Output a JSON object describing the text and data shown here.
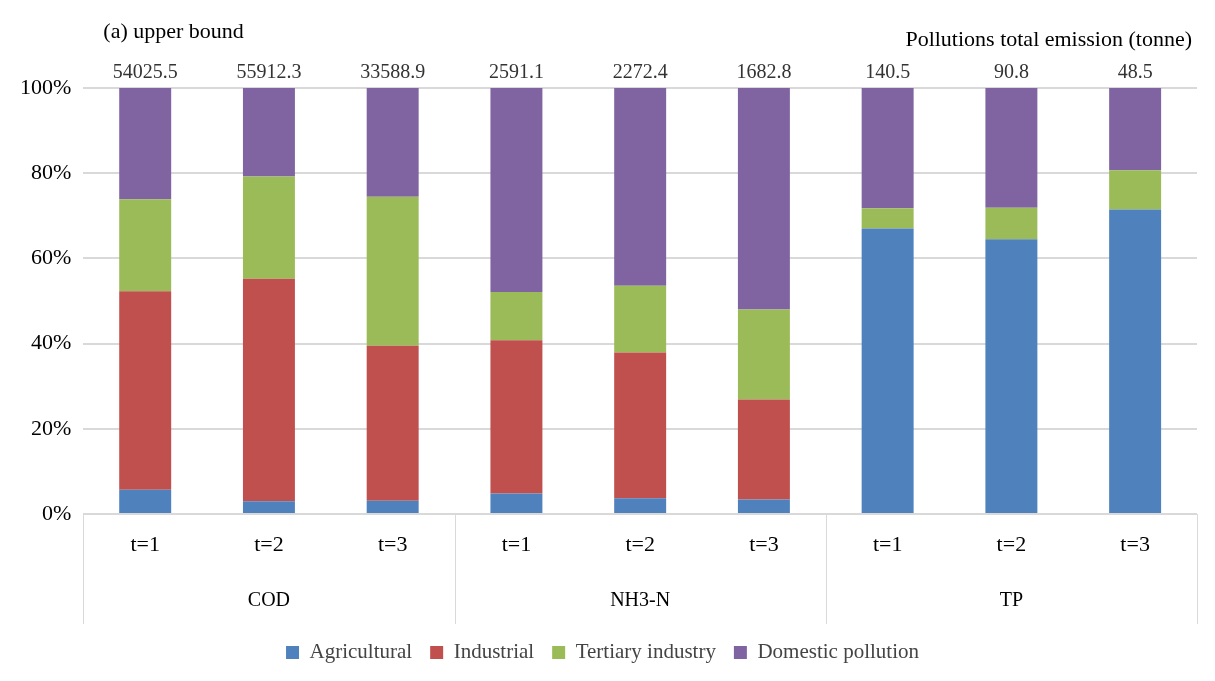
{
  "chart_data": {
    "type": "bar",
    "title": "(a) upper bound",
    "subtitle": "Pollutions total emission (tonne)",
    "categories": [
      "t=1",
      "t=2",
      "t=3",
      "t=1",
      "t=2",
      "t=3",
      "t=1",
      "t=2",
      "t=3"
    ],
    "annotations": [
      "54025.5",
      "55912.3",
      "33588.9",
      "2591.1",
      "2272.4",
      "1682.8",
      "140.5",
      "90.8",
      "48.5",
      "COD",
      "NH3-N",
      "TP"
    ],
    "stacked": true,
    "series": [
      {
        "name": "Agricultural",
        "color": "#4f81bd",
        "values": [
          5.7,
          3.0,
          3.1,
          4.8,
          3.7,
          3.4,
          67.0,
          64.5,
          71.5
        ]
      },
      {
        "name": "Industrial",
        "color": "#c0504d",
        "values": [
          46.6,
          52.2,
          36.4,
          36.0,
          34.2,
          23.5,
          0,
          0,
          0
        ]
      },
      {
        "name": "Tertiary industry",
        "color": "#9bbb59",
        "values": [
          21.6,
          24.0,
          35.0,
          11.3,
          15.7,
          21.1,
          4.8,
          7.4,
          9.2
        ]
      },
      {
        "name": "Domestic pollution",
        "color": "#8064a2",
        "values": [
          26.1,
          20.8,
          25.5,
          47.9,
          46.4,
          52.0,
          28.2,
          28.1,
          19.3
        ]
      }
    ],
    "ylim": [
      0,
      100
    ],
    "yticks": [
      {
        "value": 0,
        "label": "0%"
      },
      {
        "value": 20,
        "label": "20%"
      },
      {
        "value": 40,
        "label": "40%"
      },
      {
        "value": 60,
        "label": "60%"
      },
      {
        "value": 80,
        "label": "80%"
      },
      {
        "value": 100,
        "label": "100%"
      }
    ],
    "grid": "y",
    "legend": "bottom"
  }
}
